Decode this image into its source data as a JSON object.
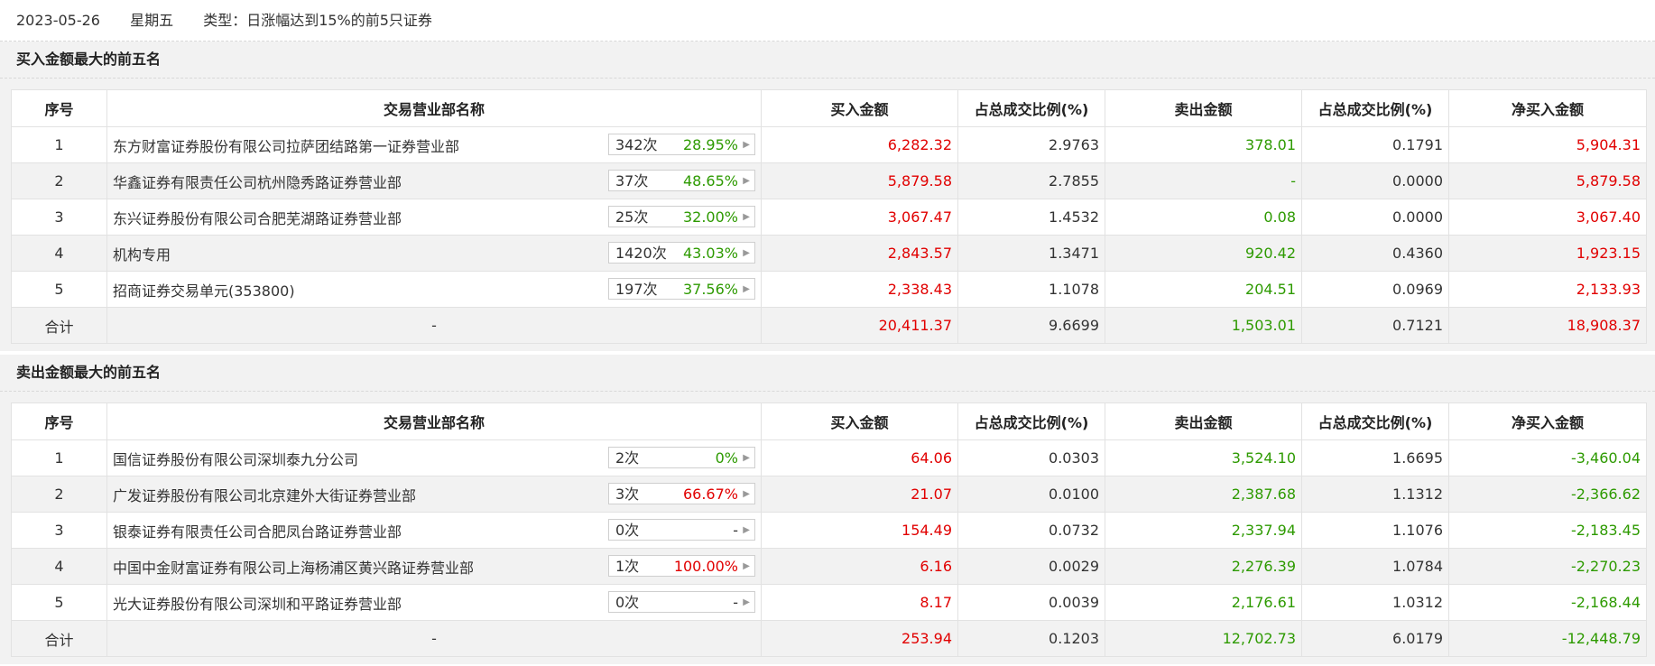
{
  "header": {
    "date": "2023-05-26",
    "weekday": "星期五",
    "type_label": "类型：日涨幅达到15%的前5只证券"
  },
  "columns": [
    "序号",
    "交易营业部名称",
    "买入金额",
    "占总成交比例(%)",
    "卖出金额",
    "占总成交比例(%)",
    "净买入金额"
  ],
  "buy_section": {
    "title": "买入金额最大的前五名",
    "rows": [
      {
        "no": "1",
        "name": "东方财富证券股份有限公司拉萨团结路第一证券营业部",
        "count": "342次",
        "pct": "28.95%",
        "pct_color": "green",
        "buy": "6,282.32",
        "buy_ratio": "2.9763",
        "sell": "378.01",
        "sell_ratio": "0.1791",
        "net": "5,904.31",
        "net_color": "red"
      },
      {
        "no": "2",
        "name": "华鑫证券有限责任公司杭州隐秀路证券营业部",
        "count": "37次",
        "pct": "48.65%",
        "pct_color": "green",
        "buy": "5,879.58",
        "buy_ratio": "2.7855",
        "sell": "-",
        "sell_ratio": "0.0000",
        "net": "5,879.58",
        "net_color": "red"
      },
      {
        "no": "3",
        "name": "东兴证券股份有限公司合肥芜湖路证券营业部",
        "count": "25次",
        "pct": "32.00%",
        "pct_color": "green",
        "buy": "3,067.47",
        "buy_ratio": "1.4532",
        "sell": "0.08",
        "sell_ratio": "0.0000",
        "net": "3,067.40",
        "net_color": "red"
      },
      {
        "no": "4",
        "name": "机构专用",
        "count": "1420次",
        "pct": "43.03%",
        "pct_color": "green",
        "buy": "2,843.57",
        "buy_ratio": "1.3471",
        "sell": "920.42",
        "sell_ratio": "0.4360",
        "net": "1,923.15",
        "net_color": "red"
      },
      {
        "no": "5",
        "name": "招商证券交易单元(353800)",
        "count": "197次",
        "pct": "37.56%",
        "pct_color": "green",
        "buy": "2,338.43",
        "buy_ratio": "1.1078",
        "sell": "204.51",
        "sell_ratio": "0.0969",
        "net": "2,133.93",
        "net_color": "red"
      }
    ],
    "total": {
      "label": "合计",
      "name": "-",
      "buy": "20,411.37",
      "buy_ratio": "9.6699",
      "sell": "1,503.01",
      "sell_ratio": "0.7121",
      "net": "18,908.37",
      "net_color": "red"
    }
  },
  "sell_section": {
    "title": "卖出金额最大的前五名",
    "rows": [
      {
        "no": "1",
        "name": "国信证券股份有限公司深圳泰九分公司",
        "count": "2次",
        "pct": "0%",
        "pct_color": "green",
        "buy": "64.06",
        "buy_ratio": "0.0303",
        "sell": "3,524.10",
        "sell_ratio": "1.6695",
        "net": "-3,460.04",
        "net_color": "green"
      },
      {
        "no": "2",
        "name": "广发证券股份有限公司北京建外大街证券营业部",
        "count": "3次",
        "pct": "66.67%",
        "pct_color": "red",
        "buy": "21.07",
        "buy_ratio": "0.0100",
        "sell": "2,387.68",
        "sell_ratio": "1.1312",
        "net": "-2,366.62",
        "net_color": "green"
      },
      {
        "no": "3",
        "name": "银泰证券有限责任公司合肥凤台路证券营业部",
        "count": "0次",
        "pct": "-",
        "pct_color": "dark",
        "buy": "154.49",
        "buy_ratio": "0.0732",
        "sell": "2,337.94",
        "sell_ratio": "1.1076",
        "net": "-2,183.45",
        "net_color": "green"
      },
      {
        "no": "4",
        "name": "中国中金财富证券有限公司上海杨浦区黄兴路证券营业部",
        "count": "1次",
        "pct": "100.00%",
        "pct_color": "red",
        "buy": "6.16",
        "buy_ratio": "0.0029",
        "sell": "2,276.39",
        "sell_ratio": "1.0784",
        "net": "-2,270.23",
        "net_color": "green"
      },
      {
        "no": "5",
        "name": "光大证券股份有限公司深圳和平路证券营业部",
        "count": "0次",
        "pct": "-",
        "pct_color": "dark",
        "buy": "8.17",
        "buy_ratio": "0.0039",
        "sell": "2,176.61",
        "sell_ratio": "1.0312",
        "net": "-2,168.44",
        "net_color": "green"
      }
    ],
    "total": {
      "label": "合计",
      "name": "-",
      "buy": "253.94",
      "buy_ratio": "0.1203",
      "sell": "12,702.73",
      "sell_ratio": "6.0179",
      "net": "-12,448.79",
      "net_color": "green"
    }
  },
  "colors": {
    "up": "#e10000",
    "down": "#2d9a00"
  },
  "icons": {
    "badge_arrow": "triangle-right-icon"
  }
}
